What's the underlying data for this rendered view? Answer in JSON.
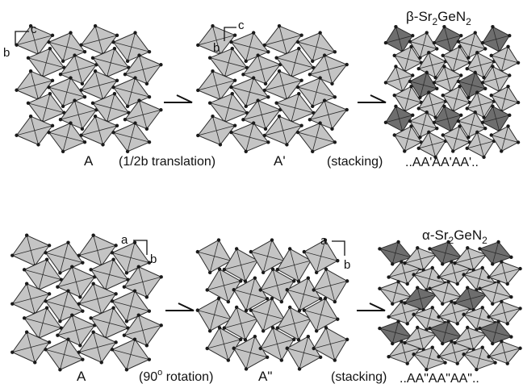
{
  "colors": {
    "polyhedron_fill": "#c4c4c4",
    "polyhedron_dark_fill": "#6e6e6e",
    "edge": "#2a2a2a",
    "atom": "#1a1a1a",
    "background": "#ffffff"
  },
  "top_row": {
    "panels": [
      {
        "label": "A",
        "axes": [
          "b",
          "c"
        ]
      },
      {
        "label": "A'",
        "axes": [
          "b",
          "c"
        ]
      },
      {
        "title_prefix": "β-Sr",
        "title_sub1": "2",
        "title_mid": "GeN",
        "title_sub2": "2",
        "label": "..AA'AA'AA'.."
      }
    ],
    "operations": [
      "(1/2b  translation)",
      "(stacking)"
    ]
  },
  "bottom_row": {
    "panels": [
      {
        "label": "A",
        "axes": [
          "a",
          "b"
        ]
      },
      {
        "label": "A\"",
        "axes": [
          "a",
          "b"
        ]
      },
      {
        "title_prefix": "α-Sr",
        "title_sub1": "2",
        "title_mid": "GeN",
        "title_sub2": "2",
        "label": "..AA\"AA\"AA\".."
      }
    ],
    "operations": [
      {
        "prefix": "(90",
        "sup": "o",
        "suffix": " rotation)"
      },
      "(stacking)"
    ]
  }
}
